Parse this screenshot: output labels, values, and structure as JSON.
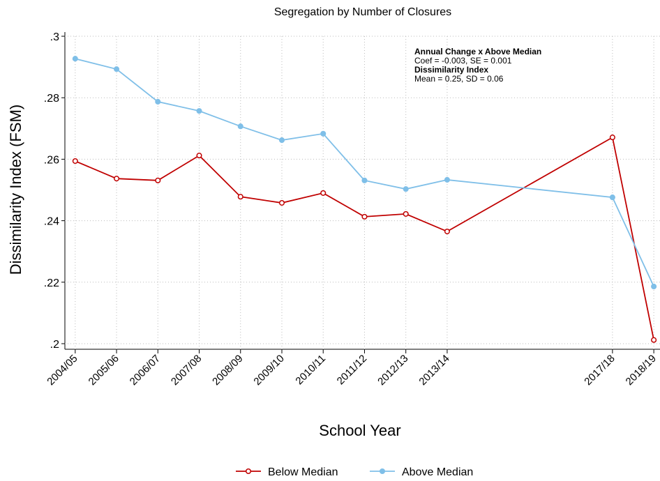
{
  "chart_data": {
    "type": "line",
    "title": "Segregation by Number of Closures",
    "x_label": "School Year",
    "y_label": "Dissimilarity Index (FSM)",
    "annotations": [
      {
        "text": "Annual Change x Above Median",
        "bold": true
      },
      {
        "text": "Coef = -0.003, SE = 0.001",
        "bold": false
      },
      {
        "text": "Dissimilarity Index",
        "bold": true
      },
      {
        "text": "Mean = 0.25, SD = 0.06",
        "bold": false
      }
    ],
    "xlim": [
      2003.75,
      2018.15
    ],
    "xticks": [
      {
        "value": 2004,
        "label": "2004/05"
      },
      {
        "value": 2005,
        "label": "2005/06"
      },
      {
        "value": 2006,
        "label": "2006/07"
      },
      {
        "value": 2007,
        "label": "2007/08"
      },
      {
        "value": 2008,
        "label": "2008/09"
      },
      {
        "value": 2009,
        "label": "2009/10"
      },
      {
        "value": 2010,
        "label": "2010/11"
      },
      {
        "value": 2011,
        "label": "2011/12"
      },
      {
        "value": 2012,
        "label": "2012/13"
      },
      {
        "value": 2013,
        "label": "2013/14"
      },
      {
        "value": 2017,
        "label": "2017/18"
      },
      {
        "value": 2018,
        "label": "2018/19"
      }
    ],
    "ylim": [
      0.2,
      0.3
    ],
    "yticks": [
      {
        "value": 0.2,
        "label": ".2"
      },
      {
        "value": 0.22,
        "label": ".22"
      },
      {
        "value": 0.24,
        "label": ".24"
      },
      {
        "value": 0.26,
        "label": ".26"
      },
      {
        "value": 0.28,
        "label": ".28"
      },
      {
        "value": 0.3,
        "label": ".3"
      }
    ],
    "grid": true,
    "x": [
      2004,
      2005,
      2006,
      2007,
      2008,
      2009,
      2010,
      2011,
      2012,
      2013,
      2017,
      2018
    ],
    "series": [
      {
        "name": "Below  Median",
        "color": "#c00000",
        "marker": "hollow",
        "values": [
          0.2594,
          0.2537,
          0.2531,
          0.2612,
          0.2478,
          0.2458,
          0.249,
          0.2413,
          0.2422,
          0.2365,
          0.2671,
          0.2012
        ]
      },
      {
        "name": "Above Median",
        "color": "#7fbfe8",
        "marker": "filled",
        "values": [
          0.2927,
          0.2893,
          0.2787,
          0.2757,
          0.2707,
          0.2662,
          0.2683,
          0.2531,
          0.2503,
          0.2533,
          0.2476,
          0.2186
        ]
      }
    ]
  }
}
